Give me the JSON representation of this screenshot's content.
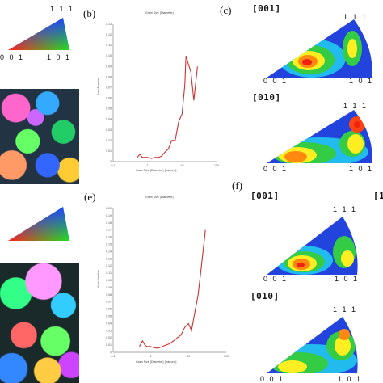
{
  "panels": {
    "b": "(b)",
    "c": "(c)",
    "e": "(e)",
    "f": "(f)"
  },
  "triangle_labels": {
    "top": "1 1 1",
    "left": "0 0 1",
    "right": "1 0 1"
  },
  "pole_figures": {
    "c_top": "[001]",
    "c_bottom": "[010]",
    "f_top": "[001]",
    "f_bottom": "[010]",
    "f_cut": "[1"
  },
  "colors": {
    "line": "#cc3333",
    "axis": "#888888"
  },
  "chart_data": [
    {
      "type": "line",
      "title": "Grain Size (Diameter)",
      "xlabel": "Grain Size (Diameter) [microns]",
      "ylabel": "Area Fraction",
      "x_scale": "log",
      "xlim": [
        0.1,
        100
      ],
      "xticks": [
        "0.1",
        "1",
        "10",
        "100"
      ],
      "ylim": [
        0,
        0.13
      ],
      "yticks": [
        "0",
        "0.01",
        "0.02",
        "0.03",
        "0.04",
        "0.05",
        "0.06",
        "0.07",
        "0.08",
        "0.09",
        "0.10",
        "0.11",
        "0.12",
        "0.13"
      ],
      "x": [
        0.5,
        0.6,
        0.7,
        0.8,
        1.0,
        1.3,
        1.6,
        2.0,
        2.5,
        3.2,
        4.0,
        5.0,
        6.3,
        8.0,
        10,
        12,
        13,
        15,
        18,
        22,
        28
      ],
      "y": [
        0.004,
        0.007,
        0.004,
        0.004,
        0.004,
        0.003,
        0.004,
        0.004,
        0.005,
        0.009,
        0.012,
        0.02,
        0.02,
        0.038,
        0.045,
        0.072,
        0.1,
        0.093,
        0.085,
        0.058,
        0.09
      ]
    },
    {
      "type": "line",
      "title": "Grain Size (Diameter)",
      "xlabel": "Grain Size (Diameter) [microns]",
      "ylabel": "Area Fraction",
      "x_scale": "log",
      "xlim": [
        0.1,
        100
      ],
      "xticks": [
        "0.1",
        "1",
        "10",
        "100"
      ],
      "ylim": [
        0,
        0.2
      ],
      "yticks": [
        "0",
        "0.01",
        "0.02",
        "0.03",
        "0.04",
        "0.05",
        "0.06",
        "0.07",
        "0.08",
        "0.09",
        "0.10",
        "0.11",
        "0.12",
        "0.13",
        "0.14",
        "0.15",
        "0.16",
        "0.17",
        "0.18",
        "0.19",
        "0.20"
      ],
      "x": [
        0.5,
        0.6,
        0.7,
        0.8,
        1.0,
        1.3,
        1.6,
        2.0,
        2.5,
        3.2,
        4.0,
        5.0,
        6.3,
        8.0,
        10,
        12,
        14,
        18,
        22,
        28
      ],
      "y": [
        0.008,
        0.016,
        0.01,
        0.008,
        0.008,
        0.006,
        0.006,
        0.008,
        0.01,
        0.012,
        0.016,
        0.02,
        0.024,
        0.035,
        0.04,
        0.03,
        0.05,
        0.08,
        0.12,
        0.17
      ]
    }
  ]
}
